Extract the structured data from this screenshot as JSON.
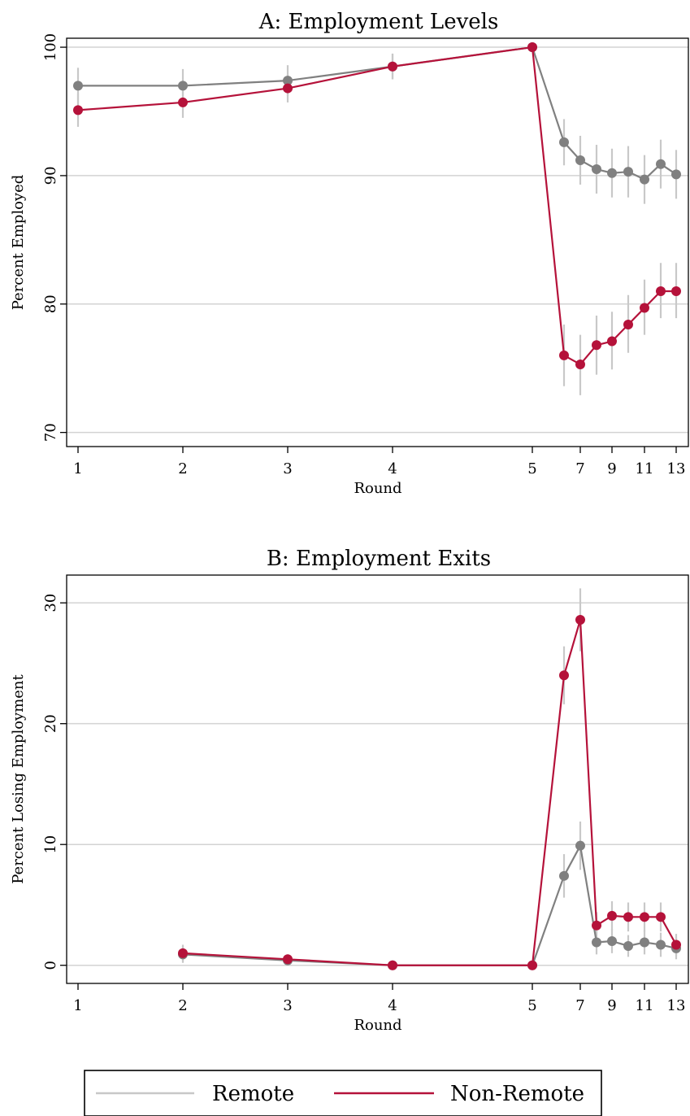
{
  "colors": {
    "remote": "#808080",
    "remote_ci": "#c8c8c8",
    "nonremote": "#b5123a",
    "grid": "#d3d3d3"
  },
  "legend": {
    "remote_label": "Remote",
    "nonremote_label": "Non-Remote"
  },
  "chart_data": [
    {
      "type": "line",
      "title": "A: Employment Levels",
      "xlabel": "Round",
      "ylabel": "Percent Employed",
      "ylim": [
        68.9,
        100.7
      ],
      "yticks": [
        70,
        80,
        90,
        100
      ],
      "xticks": [
        {
          "x": 1,
          "label": "1"
        },
        {
          "x": 2,
          "label": "2"
        },
        {
          "x": 3,
          "label": "3"
        },
        {
          "x": 4,
          "label": "4"
        },
        {
          "x": 5,
          "label": "5"
        },
        {
          "x": 7,
          "label": "7"
        },
        {
          "x": 9,
          "label": "9"
        },
        {
          "x": 11,
          "label": "11"
        },
        {
          "x": 13,
          "label": "13"
        }
      ],
      "grid": true,
      "series": [
        {
          "name": "Remote",
          "x": [
            1,
            2,
            3,
            4,
            5,
            6,
            7,
            8,
            9,
            10,
            11,
            12,
            13
          ],
          "values": [
            97.0,
            97.0,
            97.4,
            98.5,
            100.0,
            92.6,
            91.2,
            90.5,
            90.2,
            90.3,
            89.7,
            90.9,
            90.1
          ],
          "ci_low": [
            95.6,
            95.7,
            96.2,
            97.5,
            100.0,
            90.8,
            89.3,
            88.6,
            88.3,
            88.3,
            87.8,
            89.0,
            88.2
          ],
          "ci_high": [
            98.4,
            98.3,
            98.6,
            99.5,
            100.0,
            94.4,
            93.1,
            92.4,
            92.1,
            92.3,
            91.6,
            92.8,
            92.0
          ]
        },
        {
          "name": "Non-Remote",
          "x": [
            1,
            2,
            3,
            4,
            5,
            6,
            7,
            8,
            9,
            10,
            11,
            12,
            13
          ],
          "values": [
            95.1,
            95.7,
            96.8,
            98.5,
            100.0,
            76.0,
            75.3,
            76.8,
            77.1,
            78.4,
            79.7,
            81.0,
            81.0
          ],
          "ci_low": [
            93.8,
            94.5,
            95.7,
            97.5,
            100.0,
            73.6,
            72.9,
            74.5,
            74.9,
            76.2,
            77.6,
            78.9,
            78.9
          ],
          "ci_high": [
            96.4,
            96.9,
            97.9,
            99.5,
            100.0,
            78.4,
            77.6,
            79.1,
            79.4,
            80.7,
            81.9,
            83.2,
            83.2
          ]
        }
      ]
    },
    {
      "type": "line",
      "title": "B: Employment Exits",
      "xlabel": "Round",
      "ylabel": "Percent Losing Employment",
      "ylim": [
        -1.5,
        32.3
      ],
      "yticks": [
        0,
        10,
        20,
        30
      ],
      "xticks": [
        {
          "x": 1,
          "label": "1"
        },
        {
          "x": 2,
          "label": "2"
        },
        {
          "x": 3,
          "label": "3"
        },
        {
          "x": 4,
          "label": "4"
        },
        {
          "x": 5,
          "label": "5"
        },
        {
          "x": 7,
          "label": "7"
        },
        {
          "x": 9,
          "label": "9"
        },
        {
          "x": 11,
          "label": "11"
        },
        {
          "x": 13,
          "label": "13"
        }
      ],
      "grid": true,
      "series": [
        {
          "name": "Remote",
          "x": [
            2,
            3,
            4,
            5,
            6,
            7,
            8,
            9,
            10,
            11,
            12,
            13
          ],
          "values": [
            0.9,
            0.4,
            0.0,
            0.0,
            7.4,
            9.9,
            1.9,
            2.0,
            1.6,
            1.9,
            1.7,
            1.4
          ],
          "ci_low": [
            0.2,
            0.0,
            0.0,
            0.0,
            5.6,
            7.9,
            0.9,
            1.0,
            0.7,
            0.9,
            0.7,
            0.5
          ],
          "ci_high": [
            1.6,
            0.8,
            0.0,
            0.0,
            9.2,
            11.9,
            2.9,
            3.0,
            2.5,
            2.9,
            2.7,
            2.3
          ]
        },
        {
          "name": "Non-Remote",
          "x": [
            2,
            3,
            4,
            5,
            6,
            7,
            8,
            9,
            10,
            11,
            12,
            13
          ],
          "values": [
            1.0,
            0.5,
            0.0,
            0.0,
            24.0,
            28.6,
            3.3,
            4.1,
            4.0,
            4.0,
            4.0,
            1.7
          ],
          "ci_low": [
            0.3,
            0.1,
            0.0,
            0.0,
            21.6,
            26.0,
            2.2,
            2.9,
            2.8,
            2.8,
            2.8,
            0.8
          ],
          "ci_high": [
            1.7,
            0.9,
            0.0,
            0.0,
            26.4,
            31.2,
            4.4,
            5.3,
            5.2,
            5.2,
            5.2,
            2.6
          ]
        }
      ]
    }
  ]
}
